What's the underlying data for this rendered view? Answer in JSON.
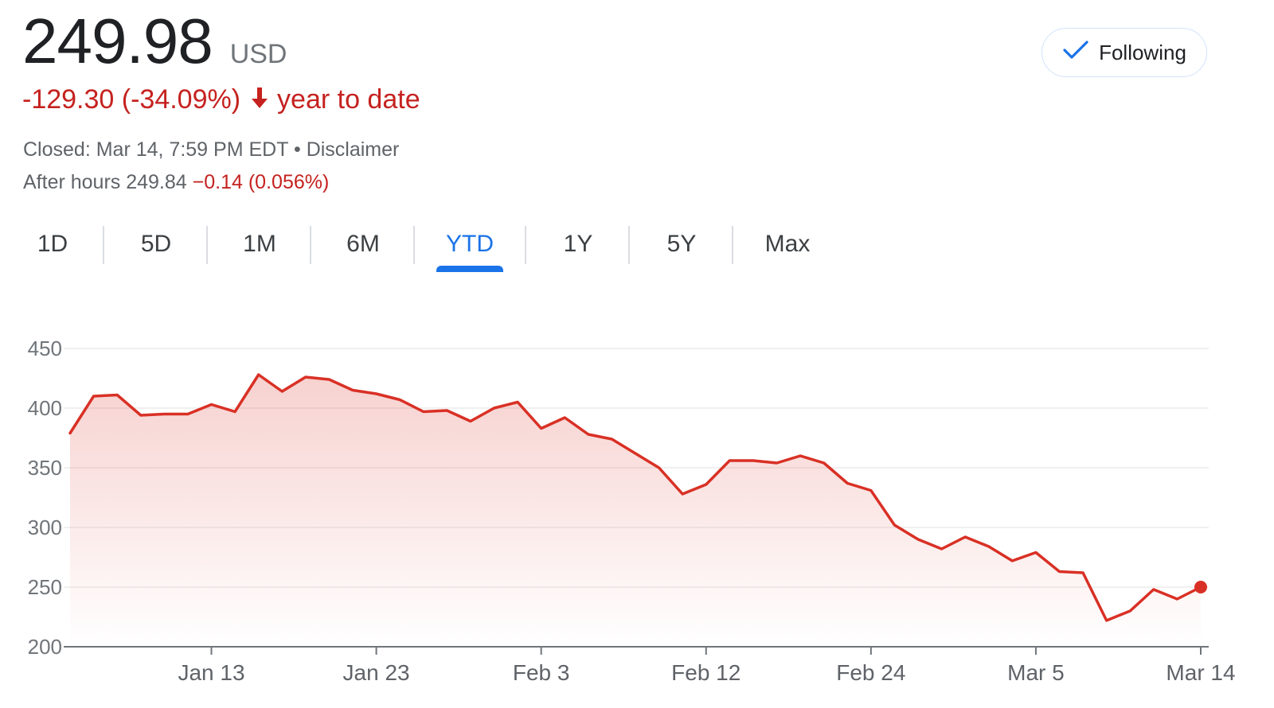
{
  "quote": {
    "price": "249.98",
    "currency": "USD",
    "change_text": "-129.30 (-34.09%)",
    "change_period": "year to date",
    "closed_text": "Closed: Mar 14, 7:59 PM EDT",
    "separator": "•",
    "disclaimer": "Disclaimer",
    "after_hours_label": "After hours 249.84",
    "after_hours_change": "−0.14 (0.056%)"
  },
  "follow_button": {
    "label": "Following",
    "icon": "check-icon"
  },
  "tabs": [
    {
      "label": "1D"
    },
    {
      "label": "5D"
    },
    {
      "label": "1M"
    },
    {
      "label": "6M"
    },
    {
      "label": "YTD",
      "active": true
    },
    {
      "label": "1Y"
    },
    {
      "label": "5Y"
    },
    {
      "label": "Max"
    }
  ],
  "colors": {
    "line": "#d93025",
    "negative": "#c5221f",
    "accent": "#1a73e8"
  },
  "chart_data": {
    "type": "area",
    "grid": true,
    "ylim": [
      200,
      450
    ],
    "yticks": [
      450,
      400,
      350,
      300,
      250,
      200
    ],
    "xtick_labels": [
      "Jan 13",
      "Jan 23",
      "Feb 3",
      "Feb 12",
      "Feb 24",
      "Mar 5",
      "Mar 14"
    ],
    "xtick_index": [
      6,
      13,
      20,
      27,
      34,
      41,
      48
    ],
    "values": [
      379,
      410,
      411,
      394,
      395,
      395,
      403,
      397,
      428,
      414,
      426,
      424,
      415,
      412,
      407,
      397,
      398,
      389,
      400,
      405,
      383,
      392,
      378,
      374,
      362,
      350,
      328,
      336,
      356,
      356,
      354,
      360,
      354,
      337,
      331,
      302,
      290,
      282,
      292,
      284,
      272,
      279,
      263,
      262,
      222,
      230,
      248,
      240,
      249.98
    ]
  }
}
